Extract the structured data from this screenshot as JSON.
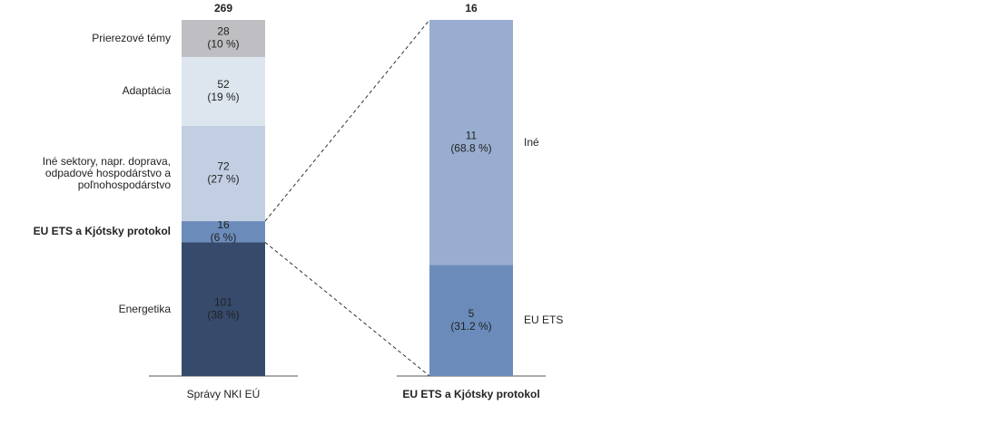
{
  "chart_data": [
    {
      "type": "stacked_bar",
      "category": "Správy NKI EÚ",
      "total": 269,
      "label_side": "left",
      "series": [
        {
          "name": "Energetika",
          "color": "#364a6c",
          "values": [
            101
          ],
          "percent_labels": [
            "(38 %)"
          ]
        },
        {
          "name": "EU ETS a Kjótsky protokol",
          "color": "#6b8cbb",
          "values": [
            16
          ],
          "percent_labels": [
            "(6 %)"
          ],
          "bold": true,
          "expanded": true
        },
        {
          "name": "Iné sektory, napr. doprava, odpadové hospodárstvo a poľnohospodárstvo",
          "color": "#c2cfe3",
          "values": [
            72
          ],
          "percent_labels": [
            "(27 %)"
          ]
        },
        {
          "name": "Adaptácia",
          "color": "#dde5ef",
          "values": [
            52
          ],
          "percent_labels": [
            "(19 %)"
          ]
        },
        {
          "name": "Prierezové témy",
          "color": "#bfbfc3",
          "values": [
            28
          ],
          "percent_labels": [
            "(10 %)"
          ]
        }
      ]
    },
    {
      "type": "stacked_bar",
      "category": "EU ETS a Kjótsky protokol",
      "total": 16,
      "label_side": "right",
      "category_bold": true,
      "series": [
        {
          "name": "EU ETS",
          "color": "#6b8cbb",
          "values": [
            5
          ],
          "percent_labels": [
            "(31.2 %)"
          ]
        },
        {
          "name": "Iné",
          "color": "#98add0",
          "values": [
            11
          ],
          "percent_labels": [
            "(68.8 %)"
          ]
        }
      ]
    }
  ]
}
